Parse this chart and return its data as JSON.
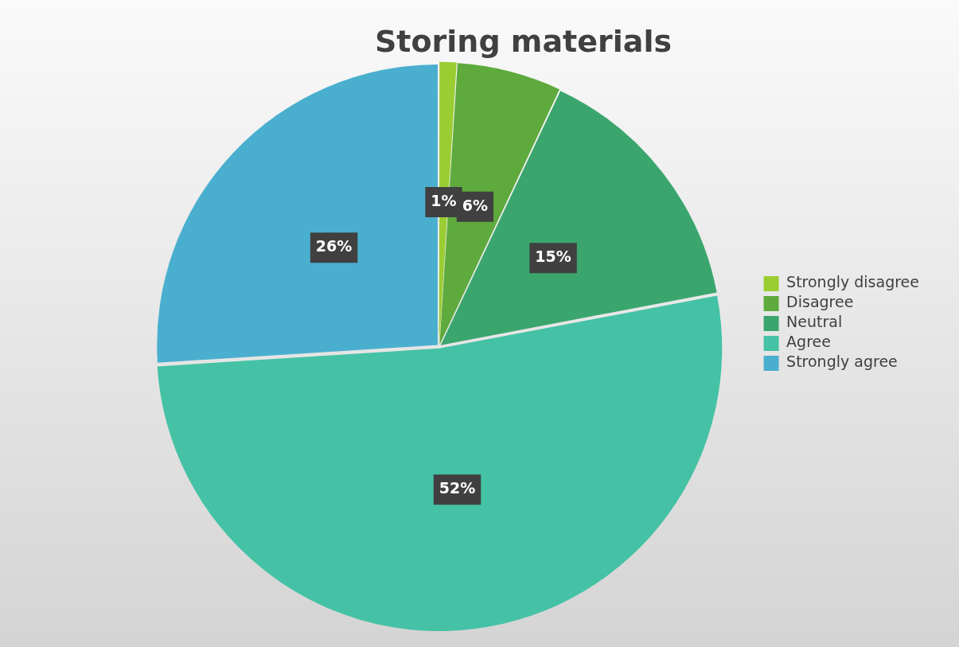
{
  "chart_data": {
    "type": "pie",
    "title": "Storing materials",
    "categories": [
      "Strongly disagree",
      "Disagree",
      "Neutral",
      "Agree",
      "Strongly agree"
    ],
    "values": [
      1,
      6,
      15,
      52,
      26
    ],
    "value_labels": [
      "1%",
      "6%",
      "15%",
      "52%",
      "26%"
    ],
    "colors": [
      "#9acd32",
      "#5eaa3c",
      "#3aa66e",
      "#45c2a5",
      "#4aafcf"
    ],
    "legend": "right"
  }
}
